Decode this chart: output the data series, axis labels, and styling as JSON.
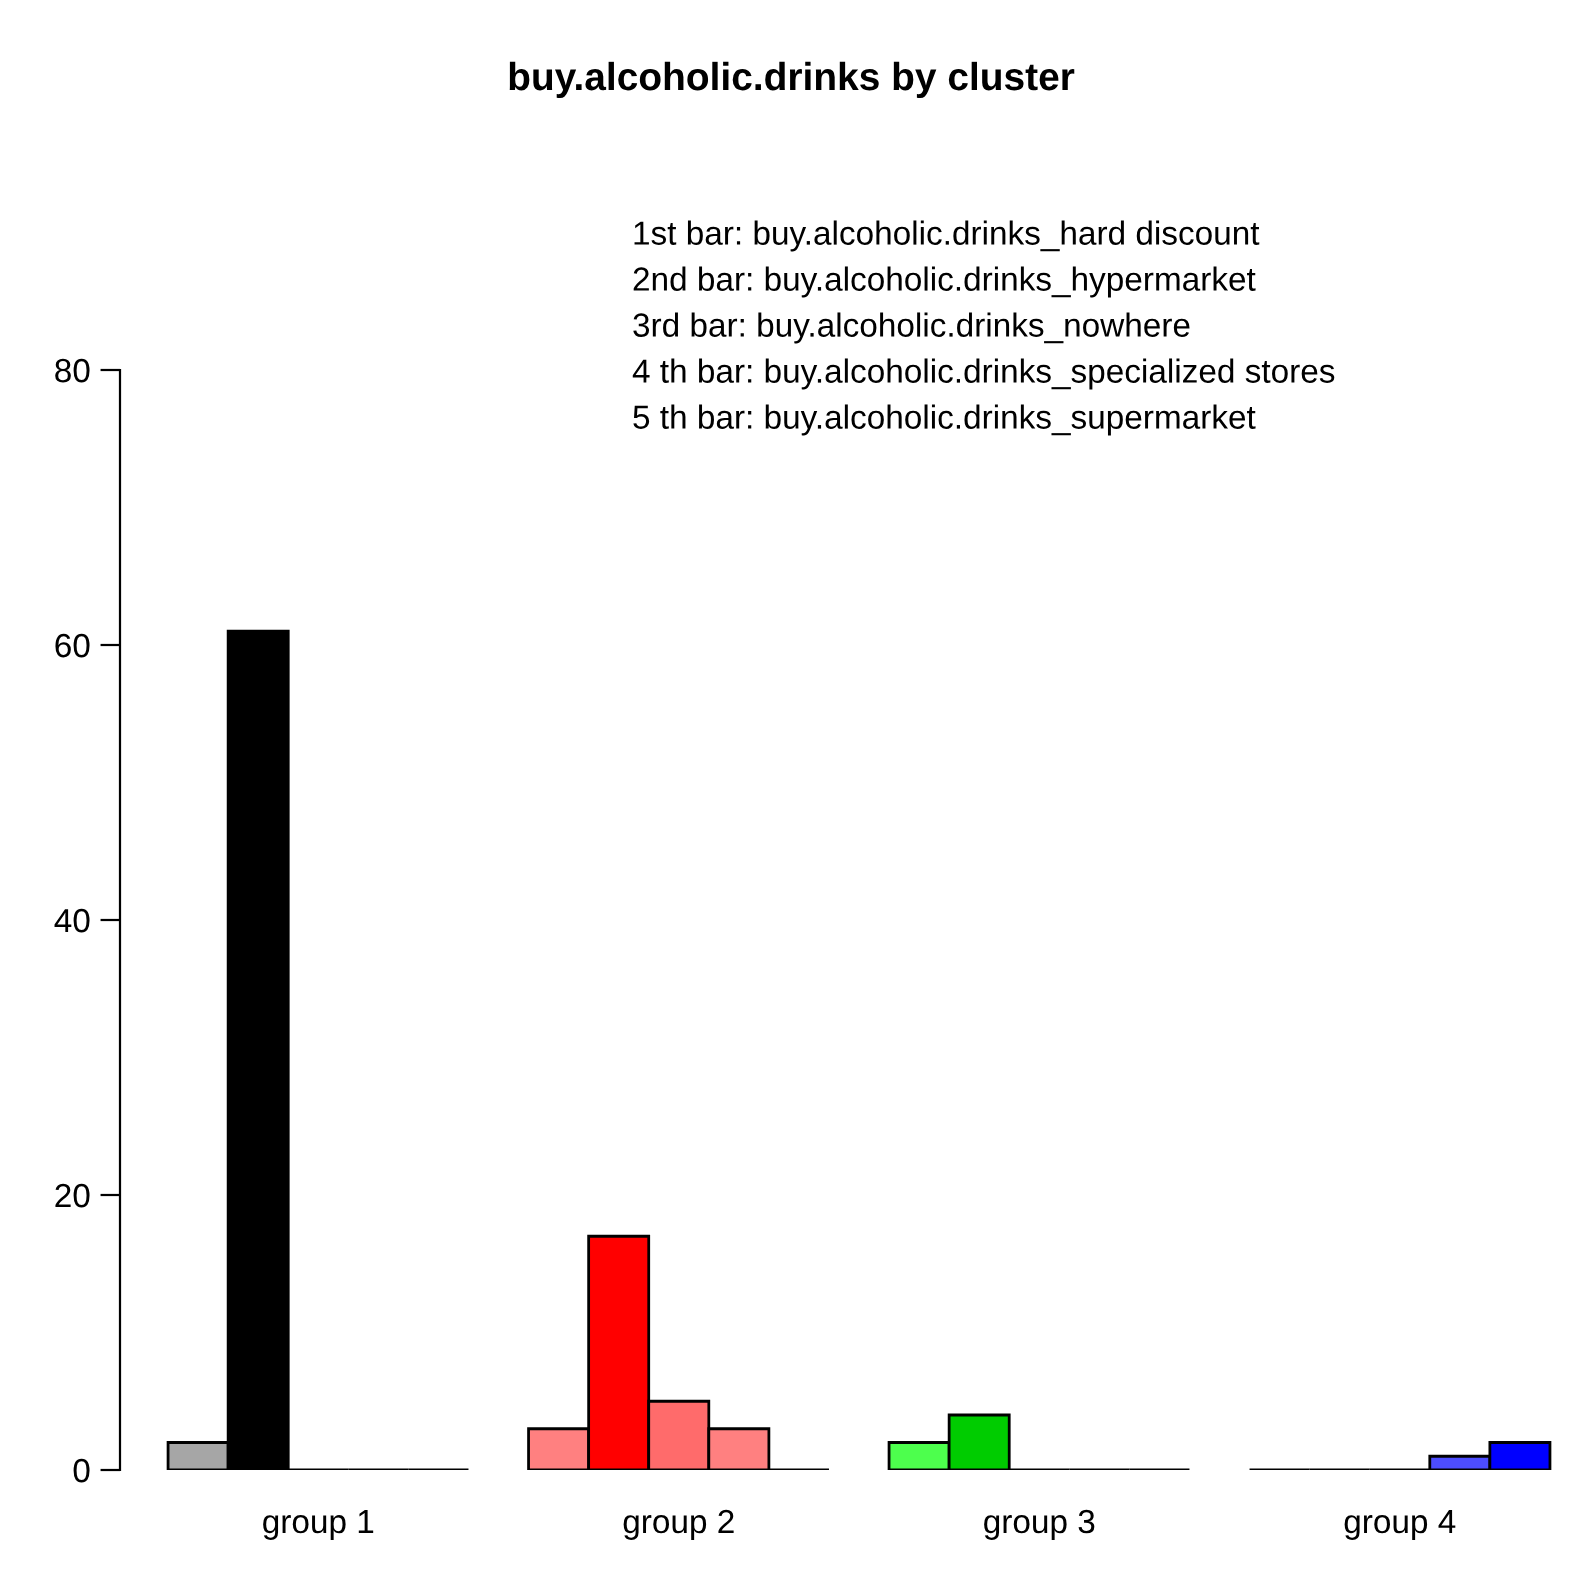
{
  "chart_data": {
    "type": "bar",
    "title": "buy.alcoholic.drinks by cluster",
    "categories": [
      "group 1",
      "group 2",
      "group 3",
      "group 4"
    ],
    "series": [
      {
        "values": [
          2,
          3,
          2,
          0
        ],
        "colors": [
          "#a6a6a6",
          "#ff8080",
          "#4dff4d",
          "#000000"
        ]
      },
      {
        "values": [
          61,
          17,
          4,
          0
        ],
        "colors": [
          "#000000",
          "#ff0000",
          "#00cc00",
          "#000000"
        ]
      },
      {
        "values": [
          0,
          5,
          0,
          0
        ],
        "colors": [
          "#000000",
          "#ff6b6b",
          "#000000",
          "#000000"
        ]
      },
      {
        "values": [
          0,
          3,
          0,
          1
        ],
        "colors": [
          "#000000",
          "#ff8080",
          "#000000",
          "#4d4dff"
        ]
      },
      {
        "values": [
          0,
          0,
          0,
          2
        ],
        "colors": [
          "#000000",
          "#000000",
          "#000000",
          "#0000ff"
        ]
      }
    ],
    "ylim": [
      0,
      80
    ],
    "yticks": [
      0,
      20,
      40,
      60,
      80
    ],
    "grid": false,
    "legend": false,
    "annotations": [
      "1st bar: buy.alcoholic.drinks_hard discount",
      "2nd bar: buy.alcoholic.drinks_hypermarket",
      "3rd bar: buy.alcoholic.drinks_nowhere",
      "4 th bar: buy.alcoholic.drinks_specialized stores",
      "5 th bar: buy.alcoholic.drinks_supermarket"
    ]
  }
}
